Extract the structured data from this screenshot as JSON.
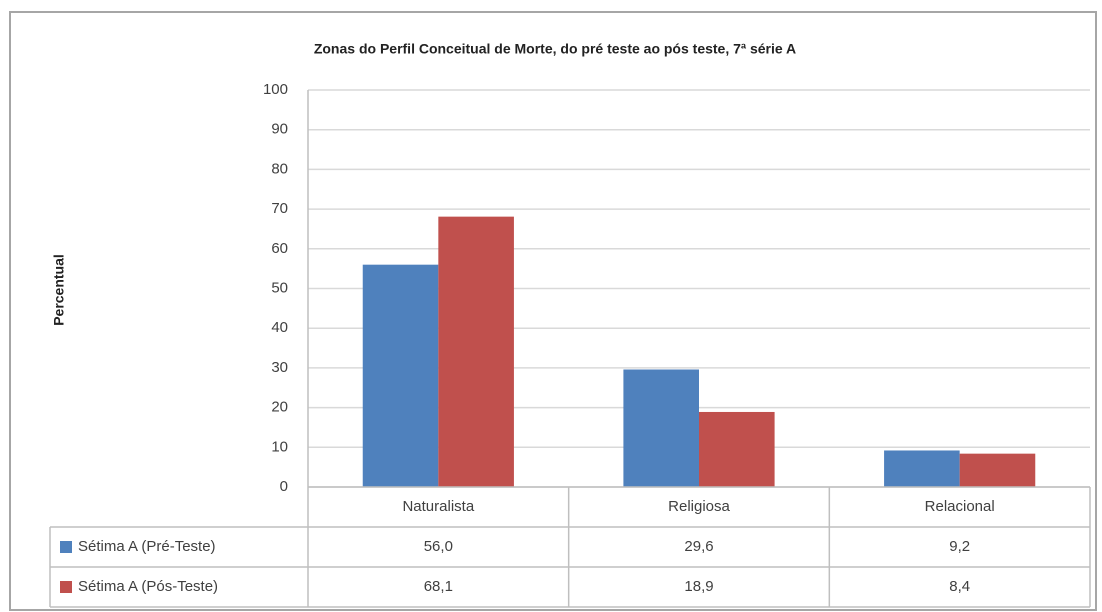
{
  "chart_data": {
    "type": "bar",
    "title": "Zonas do Perfil Conceitual de Morte, do pré teste ao pós teste, 7ª série A",
    "y_label": "Percentual",
    "categories": [
      "Naturalista",
      "Religiosa",
      "Relacional"
    ],
    "series": [
      {
        "name": "Sétima A (Pré-Teste)",
        "color": "#4f81bd",
        "values": [
          56.0,
          29.6,
          9.2
        ],
        "value_labels": [
          "56,0",
          "29,6",
          "9,2"
        ]
      },
      {
        "name": "Sétima A (Pós-Teste)",
        "color": "#c0504d",
        "values": [
          68.1,
          18.9,
          8.4
        ],
        "value_labels": [
          "68,1",
          "18,9",
          "8,4"
        ]
      }
    ],
    "ylim": [
      0,
      100
    ],
    "yticks": [
      0,
      10,
      20,
      30,
      40,
      50,
      60,
      70,
      80,
      90,
      100
    ],
    "grid": true
  }
}
